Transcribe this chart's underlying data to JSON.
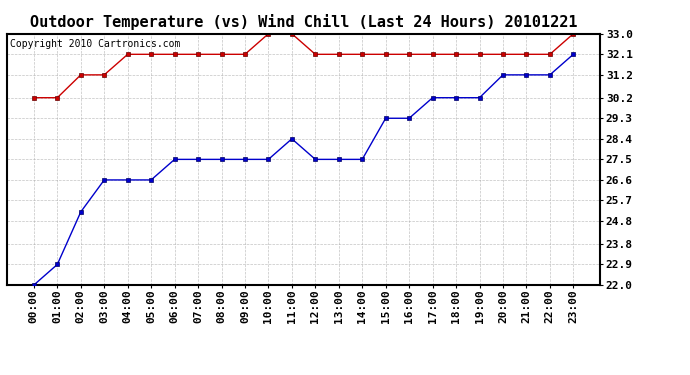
{
  "title": "Outdoor Temperature (vs) Wind Chill (Last 24 Hours) 20101221",
  "copyright": "Copyright 2010 Cartronics.com",
  "x_labels": [
    "00:00",
    "01:00",
    "02:00",
    "03:00",
    "04:00",
    "05:00",
    "06:00",
    "07:00",
    "08:00",
    "09:00",
    "10:00",
    "11:00",
    "12:00",
    "13:00",
    "14:00",
    "15:00",
    "16:00",
    "17:00",
    "18:00",
    "19:00",
    "20:00",
    "21:00",
    "22:00",
    "23:00"
  ],
  "temp_data": [
    22.0,
    22.9,
    25.2,
    26.6,
    26.6,
    26.6,
    27.5,
    27.5,
    27.5,
    27.5,
    27.5,
    28.4,
    27.5,
    27.5,
    27.5,
    29.3,
    29.3,
    30.2,
    30.2,
    30.2,
    31.2,
    31.2,
    31.2,
    32.1
  ],
  "wind_chill_data": [
    30.2,
    30.2,
    31.2,
    31.2,
    32.1,
    32.1,
    32.1,
    32.1,
    32.1,
    32.1,
    33.0,
    33.0,
    32.1,
    32.1,
    32.1,
    32.1,
    32.1,
    32.1,
    32.1,
    32.1,
    32.1,
    32.1,
    32.1,
    33.0
  ],
  "temp_color": "#0000cc",
  "wind_chill_color": "#cc0000",
  "ylim_min": 22.0,
  "ylim_max": 33.0,
  "ytick_values": [
    22.0,
    22.9,
    23.8,
    24.8,
    25.7,
    26.6,
    27.5,
    28.4,
    29.3,
    30.2,
    31.2,
    32.1,
    33.0
  ],
  "ytick_labels": [
    "22.0",
    "22.9",
    "23.8",
    "24.8",
    "25.7",
    "26.6",
    "27.5",
    "28.4",
    "29.3",
    "30.2",
    "31.2",
    "32.1",
    "33.0"
  ],
  "bg_color": "#ffffff",
  "grid_color": "#aaaaaa",
  "title_fontsize": 11,
  "copyright_fontsize": 7,
  "tick_fontsize": 8,
  "marker_color_red": "#cc0000",
  "marker_color_blue": "#0000cc"
}
